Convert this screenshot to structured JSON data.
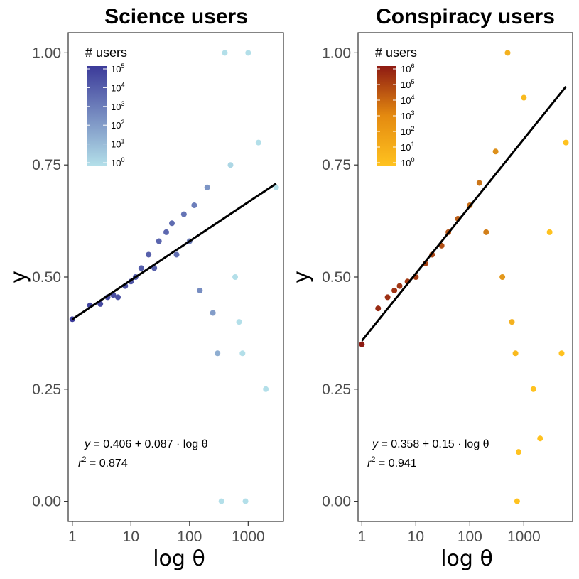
{
  "chart_data": [
    {
      "type": "scatter",
      "title": "Science users",
      "xlabel": "log θ",
      "ylabel": "y",
      "x_scale": "log10",
      "xlim": [
        0.85,
        4000
      ],
      "ylim": [
        -0.045,
        1.045
      ],
      "x_ticks": [
        1,
        10,
        100,
        1000
      ],
      "x_tick_labels": [
        "1",
        "10",
        "100",
        "1000"
      ],
      "y_ticks": [
        0,
        0.25,
        0.5,
        0.75,
        1
      ],
      "y_tick_labels": [
        "0.00",
        "0.25",
        "0.50",
        "0.75",
        "1.00"
      ],
      "grid": false,
      "legend": {
        "title": "# users",
        "placement": "top-left",
        "labels": [
          {
            "base": "10",
            "exp": "5"
          },
          {
            "base": "10",
            "exp": "4"
          },
          {
            "base": "10",
            "exp": "3"
          },
          {
            "base": "10",
            "exp": "2"
          },
          {
            "base": "10",
            "exp": "1"
          },
          {
            "base": "10",
            "exp": "0"
          }
        ],
        "color_high": "#3b3a99",
        "color_low": "#b3dfe9"
      },
      "fit": {
        "intercept": 0.406,
        "slope": 0.087,
        "x_range": [
          1,
          3000
        ],
        "color": "#000000"
      },
      "annotation": {
        "lhs": "y",
        "rhs": " = 0.406 + 0.087 · log θ",
        "r2_lhs": "r",
        "r2_exp": "2",
        "r2_rhs": " = 0.874"
      },
      "points": [
        {
          "x": 1,
          "y": 0.406,
          "c": 1.0
        },
        {
          "x": 2,
          "y": 0.437,
          "c": 0.93
        },
        {
          "x": 3,
          "y": 0.44,
          "c": 0.9
        },
        {
          "x": 4,
          "y": 0.455,
          "c": 0.88
        },
        {
          "x": 5,
          "y": 0.46,
          "c": 0.87
        },
        {
          "x": 6,
          "y": 0.455,
          "c": 0.85
        },
        {
          "x": 8,
          "y": 0.48,
          "c": 0.83
        },
        {
          "x": 10,
          "y": 0.49,
          "c": 0.81
        },
        {
          "x": 12,
          "y": 0.5,
          "c": 0.8
        },
        {
          "x": 15,
          "y": 0.52,
          "c": 0.78
        },
        {
          "x": 20,
          "y": 0.55,
          "c": 0.77
        },
        {
          "x": 25,
          "y": 0.52,
          "c": 0.76
        },
        {
          "x": 30,
          "y": 0.58,
          "c": 0.74
        },
        {
          "x": 40,
          "y": 0.6,
          "c": 0.72
        },
        {
          "x": 50,
          "y": 0.62,
          "c": 0.7
        },
        {
          "x": 60,
          "y": 0.55,
          "c": 0.68
        },
        {
          "x": 80,
          "y": 0.64,
          "c": 0.65
        },
        {
          "x": 100,
          "y": 0.58,
          "c": 0.6
        },
        {
          "x": 120,
          "y": 0.66,
          "c": 0.58
        },
        {
          "x": 150,
          "y": 0.47,
          "c": 0.5
        },
        {
          "x": 200,
          "y": 0.7,
          "c": 0.45
        },
        {
          "x": 250,
          "y": 0.42,
          "c": 0.4
        },
        {
          "x": 300,
          "y": 0.33,
          "c": 0.3
        },
        {
          "x": 400,
          "y": 1.0,
          "c": 0.0
        },
        {
          "x": 500,
          "y": 0.75,
          "c": 0.05
        },
        {
          "x": 600,
          "y": 0.5,
          "c": 0.0
        },
        {
          "x": 700,
          "y": 0.4,
          "c": 0.0
        },
        {
          "x": 800,
          "y": 0.33,
          "c": 0.0
        },
        {
          "x": 1000,
          "y": 1.0,
          "c": 0.0
        },
        {
          "x": 1500,
          "y": 0.8,
          "c": 0.0
        },
        {
          "x": 2000,
          "y": 0.25,
          "c": 0.0
        },
        {
          "x": 3000,
          "y": 0.7,
          "c": 0.0
        },
        {
          "x": 900,
          "y": 0.0,
          "c": 0.0
        },
        {
          "x": 350,
          "y": 0.0,
          "c": 0.0
        }
      ]
    },
    {
      "type": "scatter",
      "title": "Conspiracy users",
      "xlabel": "log θ",
      "ylabel": "y",
      "x_scale": "log10",
      "xlim": [
        0.85,
        8000
      ],
      "ylim": [
        -0.045,
        1.045
      ],
      "x_ticks": [
        1,
        10,
        100,
        1000
      ],
      "x_tick_labels": [
        "1",
        "10",
        "100",
        "1000"
      ],
      "y_ticks": [
        0,
        0.25,
        0.5,
        0.75,
        1
      ],
      "y_tick_labels": [
        "0.00",
        "0.25",
        "0.50",
        "0.75",
        "1.00"
      ],
      "grid": false,
      "legend": {
        "title": "# users",
        "placement": "top-left",
        "labels": [
          {
            "base": "10",
            "exp": "6"
          },
          {
            "base": "10",
            "exp": "5"
          },
          {
            "base": "10",
            "exp": "4"
          },
          {
            "base": "10",
            "exp": "3"
          },
          {
            "base": "10",
            "exp": "2"
          },
          {
            "base": "10",
            "exp": "1"
          },
          {
            "base": "10",
            "exp": "0"
          }
        ],
        "color_high": "#8e1a12",
        "color_low": "#ffc21f"
      },
      "fit": {
        "intercept": 0.358,
        "slope": 0.15,
        "x_range": [
          1,
          6000
        ],
        "color": "#000000"
      },
      "annotation": {
        "lhs": "y",
        "rhs": " = 0.358 + 0.15 · log θ",
        "r2_lhs": "r",
        "r2_exp": "2",
        "r2_rhs": " = 0.941"
      },
      "points": [
        {
          "x": 1,
          "y": 0.35,
          "c": 1.0
        },
        {
          "x": 2,
          "y": 0.43,
          "c": 0.9
        },
        {
          "x": 3,
          "y": 0.455,
          "c": 0.87
        },
        {
          "x": 4,
          "y": 0.47,
          "c": 0.85
        },
        {
          "x": 5,
          "y": 0.48,
          "c": 0.83
        },
        {
          "x": 7,
          "y": 0.49,
          "c": 0.8
        },
        {
          "x": 10,
          "y": 0.5,
          "c": 0.78
        },
        {
          "x": 15,
          "y": 0.53,
          "c": 0.75
        },
        {
          "x": 20,
          "y": 0.55,
          "c": 0.72
        },
        {
          "x": 30,
          "y": 0.57,
          "c": 0.68
        },
        {
          "x": 40,
          "y": 0.6,
          "c": 0.65
        },
        {
          "x": 60,
          "y": 0.63,
          "c": 0.6
        },
        {
          "x": 100,
          "y": 0.66,
          "c": 0.5
        },
        {
          "x": 150,
          "y": 0.71,
          "c": 0.45
        },
        {
          "x": 200,
          "y": 0.6,
          "c": 0.4
        },
        {
          "x": 300,
          "y": 0.78,
          "c": 0.3
        },
        {
          "x": 400,
          "y": 0.5,
          "c": 0.25
        },
        {
          "x": 500,
          "y": 1.0,
          "c": 0.1
        },
        {
          "x": 600,
          "y": 0.4,
          "c": 0.1
        },
        {
          "x": 700,
          "y": 0.33,
          "c": 0.05
        },
        {
          "x": 750,
          "y": 0.0,
          "c": 0.0
        },
        {
          "x": 800,
          "y": 0.11,
          "c": 0.0
        },
        {
          "x": 1000,
          "y": 0.9,
          "c": 0.05
        },
        {
          "x": 1500,
          "y": 0.25,
          "c": 0.0
        },
        {
          "x": 2000,
          "y": 0.14,
          "c": 0.0
        },
        {
          "x": 3000,
          "y": 0.6,
          "c": 0.0
        },
        {
          "x": 5000,
          "y": 0.33,
          "c": 0.0
        },
        {
          "x": 6000,
          "y": 0.8,
          "c": 0.0
        }
      ]
    }
  ]
}
